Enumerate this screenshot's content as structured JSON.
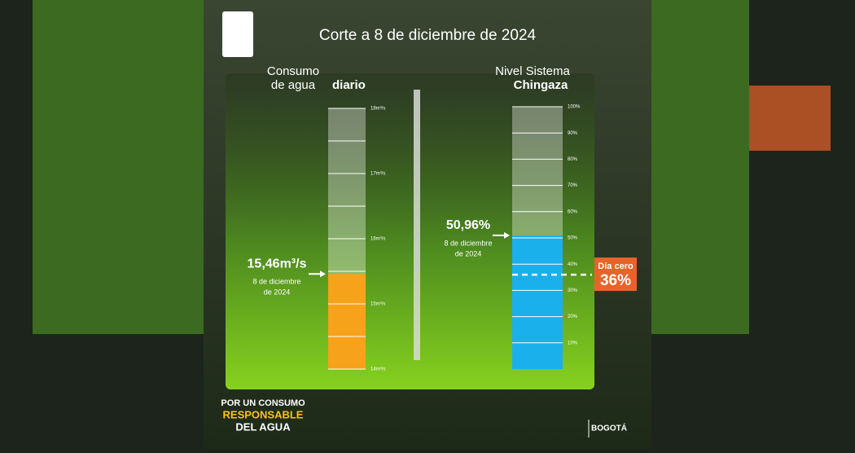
{
  "header": {
    "title": "Corte a 8 de diciembre de 2024"
  },
  "chart_data": [
    {
      "type": "gauge",
      "title_lines": [
        "Consumo",
        "de agua"
      ],
      "title_bold": "diario",
      "values": [
        15.46
      ],
      "value_labels": [
        "15,46m³/s"
      ],
      "date_lines": [
        "8 de diciembre",
        "de 2024"
      ],
      "color": "#f7a21b",
      "ylim": [
        14,
        18
      ],
      "yticks": [
        {
          "value": 14,
          "label": "14m³/s"
        },
        {
          "value": 15,
          "label": "15m³/s"
        },
        {
          "value": 16,
          "label": "16m³/s"
        },
        {
          "value": 17,
          "label": "17m³/s"
        },
        {
          "value": 18,
          "label": "18m³/s"
        }
      ],
      "minor_yticks": [
        14.5,
        15.5,
        16.5,
        17.5
      ]
    },
    {
      "type": "gauge",
      "title_lines": [
        "Nivel Sistema"
      ],
      "title_bold": "Chingaza",
      "values": [
        50.96
      ],
      "value_labels": [
        "50,96%"
      ],
      "date_lines": [
        "8 de diciembre",
        "de 2024"
      ],
      "color": "#1ab0ec",
      "ylim": [
        0,
        100
      ],
      "yticks": [
        {
          "value": 10,
          "label": "10%"
        },
        {
          "value": 20,
          "label": "20%"
        },
        {
          "value": 30,
          "label": "30%"
        },
        {
          "value": 40,
          "label": "40%"
        },
        {
          "value": 50,
          "label": "50%"
        },
        {
          "value": 60,
          "label": "60%"
        },
        {
          "value": 70,
          "label": "70%"
        },
        {
          "value": 80,
          "label": "80%"
        },
        {
          "value": 90,
          "label": "90%"
        },
        {
          "value": 100,
          "label": "100%"
        }
      ],
      "threshold": {
        "value": 36,
        "label": "Día cero",
        "value_label": "36%"
      }
    }
  ],
  "footer": {
    "slogan": [
      "POR UN CONSUMO",
      "RESPONSABLE",
      "DEL AGUA"
    ],
    "brand": "BOGOTÁ"
  }
}
